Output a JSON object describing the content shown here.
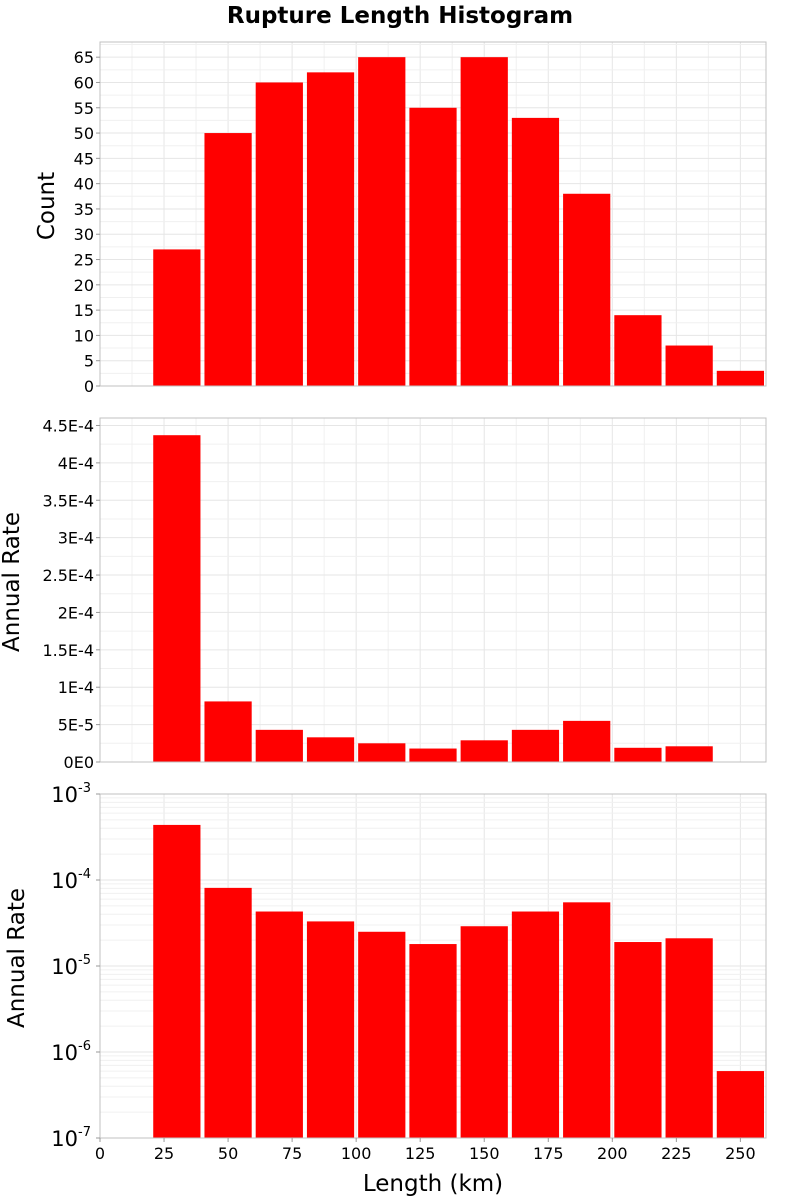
{
  "title": "Rupture Length Histogram",
  "colors": {
    "bar": "#ff0000",
    "background": "#ffffff"
  },
  "x_axis": {
    "label": "Length (km)",
    "range": [
      0,
      260
    ],
    "ticks": [
      0,
      25,
      50,
      75,
      100,
      125,
      150,
      175,
      200,
      225,
      250
    ]
  },
  "chart_data": [
    {
      "type": "bar",
      "ylabel": "Count",
      "ylim": [
        0,
        68
      ],
      "y_scale": "linear",
      "grid": true,
      "y_ticks": [
        {
          "value": 0,
          "label": "0"
        },
        {
          "value": 5,
          "label": "5"
        },
        {
          "value": 10,
          "label": "10"
        },
        {
          "value": 15,
          "label": "15"
        },
        {
          "value": 20,
          "label": "20"
        },
        {
          "value": 25,
          "label": "25"
        },
        {
          "value": 30,
          "label": "30"
        },
        {
          "value": 35,
          "label": "35"
        },
        {
          "value": 40,
          "label": "40"
        },
        {
          "value": 45,
          "label": "45"
        },
        {
          "value": 50,
          "label": "50"
        },
        {
          "value": 55,
          "label": "55"
        },
        {
          "value": 60,
          "label": "60"
        },
        {
          "value": 65,
          "label": "65"
        }
      ],
      "bin_width": 20,
      "x": [
        30,
        50,
        70,
        90,
        110,
        130,
        150,
        170,
        190,
        210,
        230,
        250
      ],
      "values": [
        27,
        50,
        60,
        62,
        65,
        55,
        65,
        53,
        38,
        14,
        8,
        3
      ]
    },
    {
      "type": "bar",
      "ylabel": "Annual Rate",
      "ylim": [
        0,
        0.00046
      ],
      "y_scale": "linear",
      "grid": true,
      "y_ticks": [
        {
          "value": 0,
          "label": "0E0"
        },
        {
          "value": 5e-05,
          "label": "5E-5"
        },
        {
          "value": 0.0001,
          "label": "1E-4"
        },
        {
          "value": 0.00015,
          "label": "1.5E-4"
        },
        {
          "value": 0.0002,
          "label": "2E-4"
        },
        {
          "value": 0.00025,
          "label": "2.5E-4"
        },
        {
          "value": 0.0003,
          "label": "3E-4"
        },
        {
          "value": 0.00035,
          "label": "3.5E-4"
        },
        {
          "value": 0.0004,
          "label": "4E-4"
        },
        {
          "value": 0.00045,
          "label": "4.5E-4"
        }
      ],
      "bin_width": 20,
      "x": [
        30,
        50,
        70,
        90,
        110,
        130,
        150,
        170,
        190,
        210,
        230,
        250
      ],
      "values": [
        0.000437,
        8.1e-05,
        4.3e-05,
        3.3e-05,
        2.5e-05,
        1.8e-05,
        2.9e-05,
        4.3e-05,
        5.5e-05,
        1.9e-05,
        2.1e-05,
        6e-07
      ]
    },
    {
      "type": "bar",
      "ylabel": "Annual Rate",
      "ylim": [
        1e-07,
        0.001
      ],
      "y_scale": "log",
      "grid": true,
      "y_ticks": [
        {
          "value": 1e-07,
          "base": "10",
          "exp": "-7"
        },
        {
          "value": 1e-06,
          "base": "10",
          "exp": "-6"
        },
        {
          "value": 1e-05,
          "base": "10",
          "exp": "-5"
        },
        {
          "value": 0.0001,
          "base": "10",
          "exp": "-4"
        },
        {
          "value": 0.001,
          "base": "10",
          "exp": "-3"
        }
      ],
      "bin_width": 20,
      "x": [
        30,
        50,
        70,
        90,
        110,
        130,
        150,
        170,
        190,
        210,
        230,
        250
      ],
      "values": [
        0.000437,
        8.1e-05,
        4.3e-05,
        3.3e-05,
        2.5e-05,
        1.8e-05,
        2.9e-05,
        4.3e-05,
        5.5e-05,
        1.9e-05,
        2.1e-05,
        6e-07
      ]
    }
  ]
}
